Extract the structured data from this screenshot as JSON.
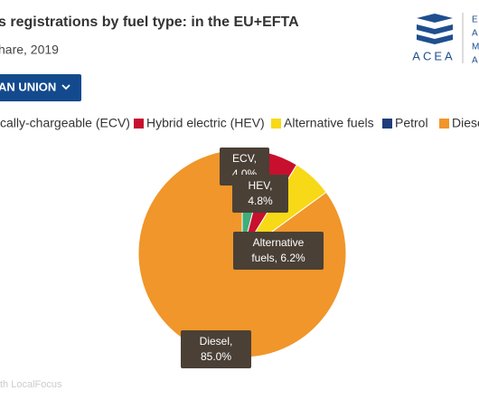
{
  "chart_data": {
    "type": "pie",
    "title": "s registrations by fuel type: in the EU+EFTA",
    "subtitle": "hare, 2019",
    "button": "AN UNION",
    "categories": [
      "cally-chargeable (ECV)",
      "Hybrid electric (HEV)",
      "Alternative fuels",
      "Petrol",
      "Diese"
    ],
    "values": [
      4.0,
      4.8,
      6.2,
      0,
      85.0
    ],
    "value_labels": [
      "ECV, 4.0%",
      "HEV, 4.8%",
      "Alternative fuels, 6.2%",
      null,
      "Diesel, 85.0%"
    ],
    "colors": [
      "#3fae7a",
      "#c8102e",
      "#f7d917",
      "#1f3d7a",
      "#f0962a"
    ],
    "logo": {
      "name": "ACEA",
      "side_letters": [
        "E",
        "A",
        "M",
        "A"
      ]
    },
    "footer": "th LocalFocus"
  }
}
